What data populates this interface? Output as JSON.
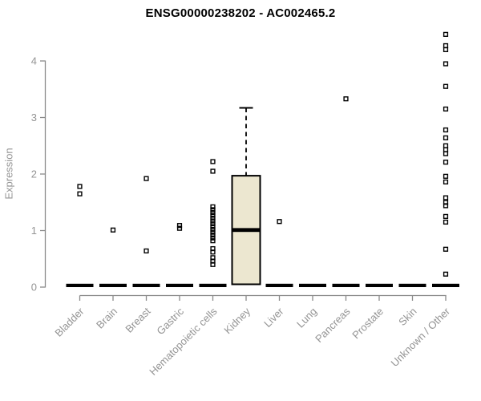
{
  "chart_data": {
    "type": "boxplot",
    "title": "ENSG00000238202 - AC002465.2",
    "ylabel": "Expression",
    "xlabel": "",
    "ylim": [
      0,
      4.6
    ],
    "yticks": [
      0,
      1,
      2,
      3,
      4
    ],
    "grid": false,
    "legend": "none",
    "colors": {
      "box_fill": "#ece7d0",
      "box_stroke": "#000000",
      "zero_bar": "#000000",
      "point_stroke": "#000000",
      "axis": "#8a8a8a",
      "tick_text": "#949494",
      "title_text": "#000000"
    },
    "categories": [
      "Bladder",
      "Brain",
      "Breast",
      "Gastric",
      "Hematopoietic cells",
      "Kidney",
      "Liver",
      "Lung",
      "Pancreas",
      "Prostate",
      "Skin",
      "Unknown / Other"
    ],
    "series": [
      {
        "name": "Bladder",
        "zero_bar": true,
        "points": [
          1.78,
          1.65
        ]
      },
      {
        "name": "Brain",
        "zero_bar": true,
        "points": [
          1.01
        ]
      },
      {
        "name": "Breast",
        "zero_bar": true,
        "points": [
          1.92,
          0.64
        ]
      },
      {
        "name": "Gastric",
        "zero_bar": true,
        "points": [
          1.09,
          1.04
        ]
      },
      {
        "name": "Hematopoietic cells",
        "zero_bar": true,
        "points": [
          2.22,
          2.05,
          1.42,
          1.37,
          1.32,
          1.27,
          1.22,
          1.17,
          1.12,
          1.07,
          1.02,
          0.97,
          0.92,
          0.87,
          0.82,
          0.68,
          0.62,
          0.52,
          0.46,
          0.4
        ]
      },
      {
        "name": "Kidney",
        "zero_bar": false,
        "box": {
          "lower": 0.05,
          "median": 1.01,
          "upper": 1.97,
          "whisker_high": 3.17
        },
        "points": []
      },
      {
        "name": "Liver",
        "zero_bar": true,
        "points": [
          1.16
        ]
      },
      {
        "name": "Lung",
        "zero_bar": true,
        "points": []
      },
      {
        "name": "Pancreas",
        "zero_bar": true,
        "points": [
          3.33
        ]
      },
      {
        "name": "Prostate",
        "zero_bar": true,
        "points": []
      },
      {
        "name": "Skin",
        "zero_bar": true,
        "points": []
      },
      {
        "name": "Unknown / Other",
        "zero_bar": true,
        "points": [
          4.47,
          4.27,
          4.2,
          3.95,
          3.55,
          3.15,
          2.78,
          2.64,
          2.5,
          2.43,
          2.36,
          2.21,
          1.96,
          1.86,
          1.58,
          1.5,
          1.44,
          1.25,
          1.15,
          0.67,
          0.23
        ]
      }
    ]
  }
}
